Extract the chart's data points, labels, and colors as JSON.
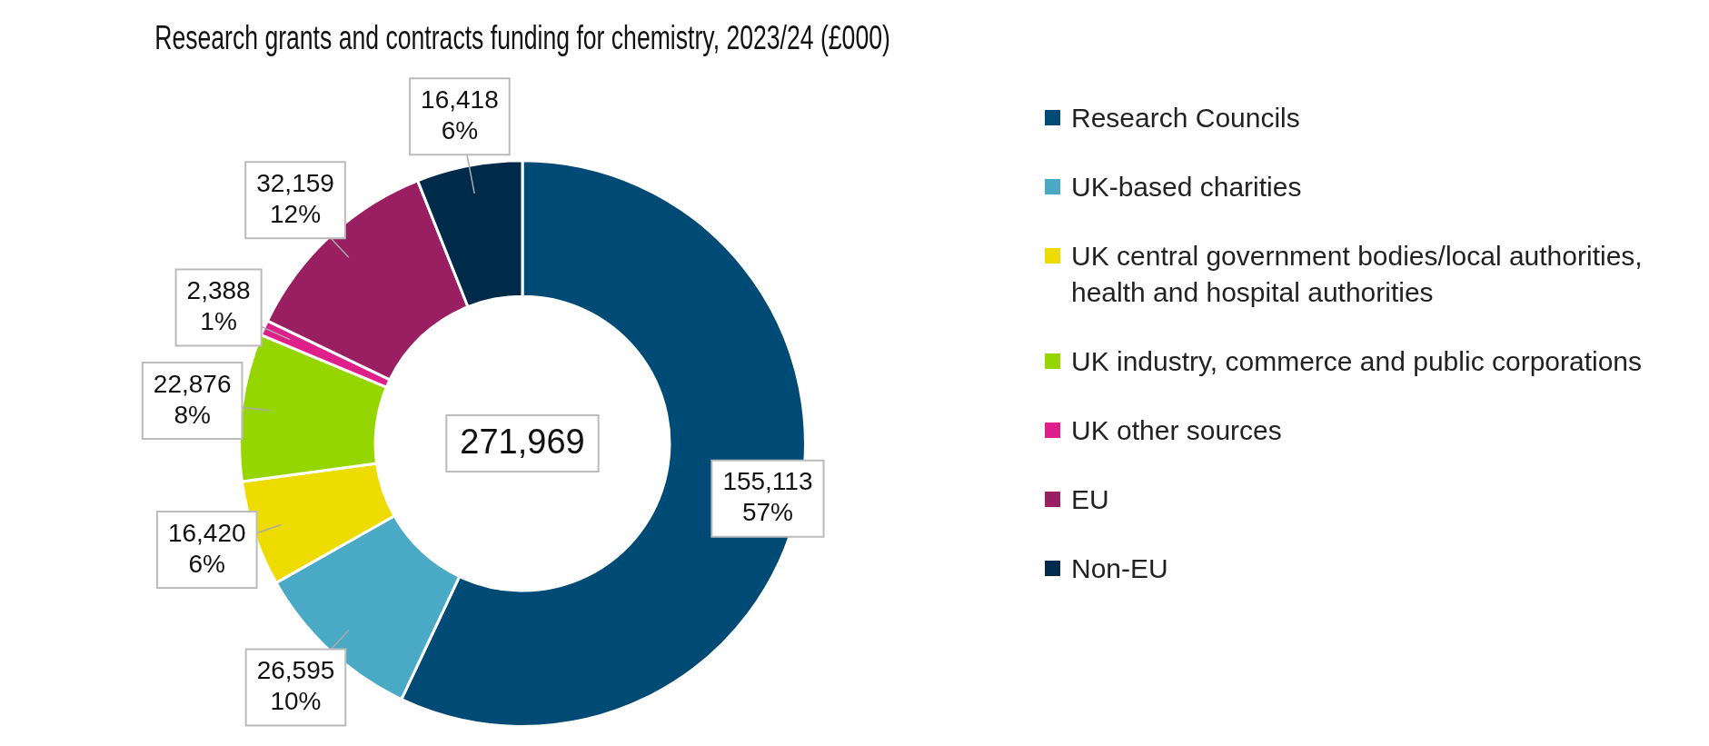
{
  "chart_data": {
    "type": "donut",
    "title": "Research grants and contracts funding for chemistry, 2023/24 (£000)",
    "categories": [
      "Research Councils",
      "UK-based charities",
      "UK central government bodies/local authorities, health and hospital authorities",
      "UK industry, commerce and public corporations",
      "UK other sources",
      "EU",
      "Non-EU"
    ],
    "values": [
      155113,
      26595,
      16420,
      22876,
      2388,
      32159,
      16418
    ],
    "colors": [
      "#004a76",
      "#4aaac6",
      "#eedb00",
      "#96d600",
      "#e0208a",
      "#991f62",
      "#002a4a"
    ],
    "value_labels": [
      "155,113\n57%",
      "26,595\n10%",
      "16,420\n6%",
      "22,876\n8%",
      "2,388\n1%",
      "32,159\n12%",
      "16,418\n6%"
    ],
    "annotations": [
      "271,969"
    ],
    "legend": "right"
  }
}
